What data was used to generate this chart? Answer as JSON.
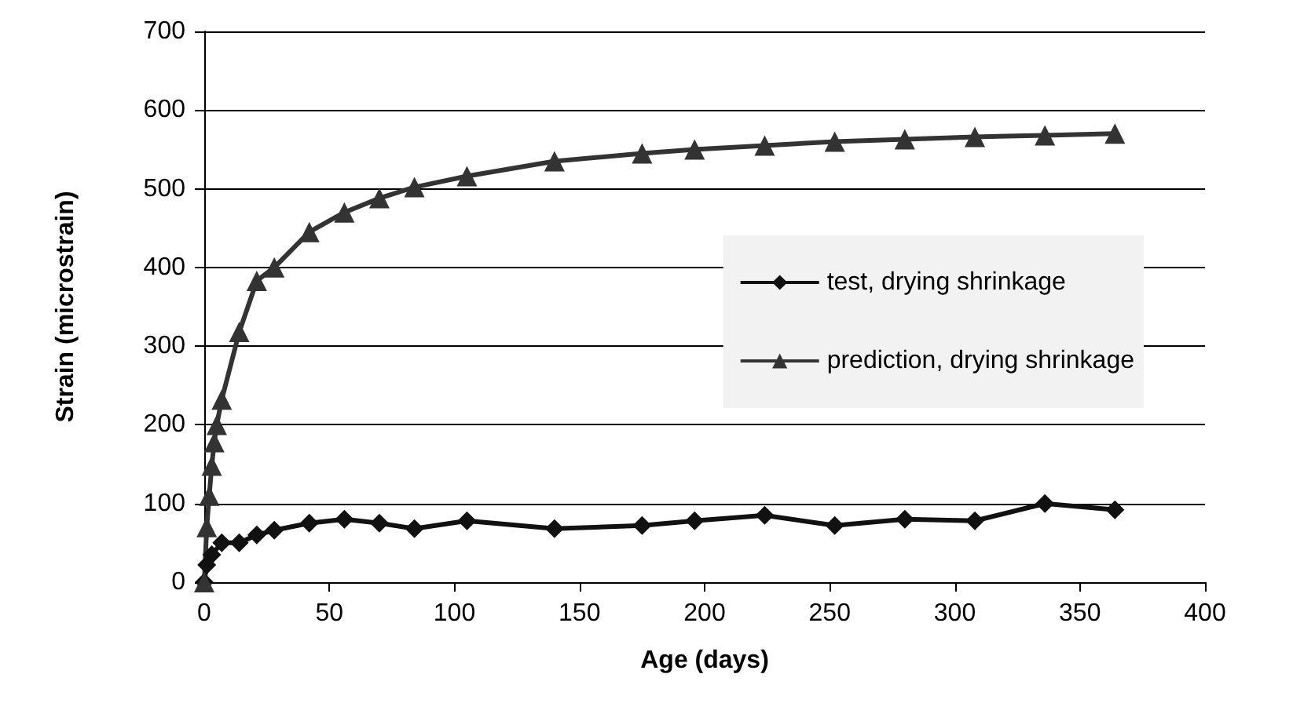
{
  "chart_data": {
    "type": "line",
    "xlabel": "Age (days)",
    "ylabel": "Strain (microstrain)",
    "xlim": [
      0,
      400
    ],
    "xticks": [
      0,
      50,
      100,
      150,
      200,
      250,
      300,
      350,
      400
    ],
    "ylim": [
      0,
      700
    ],
    "yticks": [
      0,
      100,
      200,
      300,
      400,
      500,
      600,
      700
    ],
    "grid": "y",
    "legend": "right",
    "line_style": "solid",
    "series": [
      {
        "name": "test, drying shrinkage",
        "color": "#111111",
        "marker": "diamond",
        "x": [
          0,
          1,
          3,
          7,
          14,
          21,
          28,
          42,
          56,
          70,
          84,
          105,
          140,
          175,
          196,
          224,
          252,
          280,
          308,
          336,
          364
        ],
        "values": [
          0,
          22,
          35,
          50,
          50,
          60,
          66,
          75,
          80,
          75,
          68,
          78,
          68,
          72,
          78,
          85,
          72,
          80,
          78,
          100,
          92
        ]
      },
      {
        "name": "prediction, drying shrinkage",
        "color": "#333333",
        "marker": "triangle",
        "x": [
          0,
          1,
          2,
          3,
          4,
          5,
          7,
          14,
          21,
          28,
          42,
          56,
          70,
          84,
          105,
          140,
          175,
          196,
          224,
          252,
          280,
          308,
          336,
          364
        ],
        "values": [
          0,
          70,
          110,
          148,
          178,
          200,
          232,
          318,
          383,
          400,
          445,
          470,
          488,
          502,
          516,
          535,
          545,
          550,
          555,
          560,
          563,
          566,
          568,
          570
        ]
      }
    ]
  }
}
